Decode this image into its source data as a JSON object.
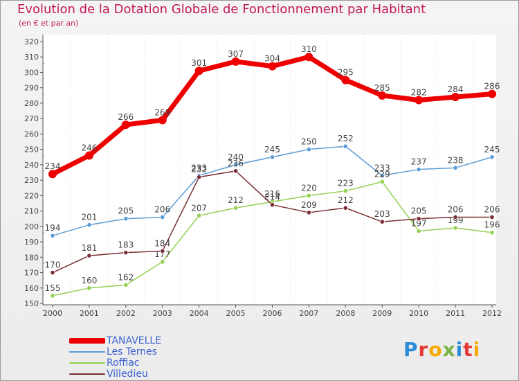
{
  "title": "Evolution de la Dotation Globale de Fonctionnement par Habitant",
  "subtitle": "(en € et par an)",
  "logo": {
    "text": "Proxiti",
    "letters": [
      {
        "char": "P",
        "color": "#2e8bd6"
      },
      {
        "char": "r",
        "color": "#e53935"
      },
      {
        "char": "o",
        "color": "#f6a800"
      },
      {
        "char": "x",
        "color": "#7cb342"
      },
      {
        "char": "i",
        "color": "#2e8bd6"
      },
      {
        "char": "t",
        "color": "#e53935"
      },
      {
        "char": "i",
        "color": "#f6a800"
      }
    ]
  },
  "chart_data": {
    "type": "line",
    "title": "Evolution de la Dotation Globale de Fonctionnement par Habitant",
    "subtitle": "(en € et par an)",
    "xlabel": "",
    "ylabel": "",
    "ylim": [
      150,
      320
    ],
    "y_ticks": [
      150,
      160,
      170,
      180,
      190,
      200,
      210,
      220,
      230,
      240,
      250,
      260,
      270,
      280,
      290,
      300,
      310,
      320
    ],
    "grid": false,
    "legend_position": "bottom-left",
    "categories": [
      "2000",
      "2001",
      "2002",
      "2003",
      "2004",
      "2005",
      "2006",
      "2007",
      "2008",
      "2009",
      "2010",
      "2011",
      "2012"
    ],
    "series": [
      {
        "name": "Les Ternes",
        "color": "#5b9bd5",
        "width": 1.5,
        "values": [
          194,
          201,
          205,
          206,
          233,
          240,
          245,
          250,
          252,
          233,
          237,
          238,
          245
        ],
        "labels": [
          "194",
          "201",
          "205",
          "206",
          "233",
          "240",
          "245",
          "250",
          "252",
          "233",
          "237",
          "238",
          "245"
        ]
      },
      {
        "name": "Roffiac",
        "color": "#92d050",
        "width": 1.5,
        "values": [
          155,
          160,
          162,
          177,
          207,
          212,
          216,
          220,
          223,
          229,
          197,
          199,
          196
        ],
        "labels": [
          "155",
          "160",
          "162",
          "177",
          "207",
          "212",
          "216",
          "220",
          "223",
          "229",
          "197",
          "199",
          "196"
        ]
      },
      {
        "name": "Villedieu",
        "color": "#7b2d34",
        "width": 1.5,
        "values": [
          170,
          181,
          183,
          184,
          232,
          236,
          214,
          209,
          212,
          203,
          205,
          206,
          206
        ],
        "labels": [
          "170",
          "181",
          "183",
          "184",
          "232",
          "236",
          "214",
          "209",
          "212",
          "203",
          "205",
          "206",
          "206"
        ]
      },
      {
        "name": "TANAVELLE",
        "color": "#ee0000",
        "width": 7,
        "values": [
          234,
          246,
          266,
          269,
          301,
          307,
          304,
          310,
          295,
          285,
          282,
          284,
          286
        ],
        "labels": [
          "234",
          "246",
          "266",
          "269",
          "301",
          "307",
          "304",
          "310",
          "295",
          "285",
          "282",
          "284",
          "286"
        ]
      }
    ],
    "legend_order": [
      "TANAVELLE",
      "Les Ternes",
      "Roffiac",
      "Villedieu"
    ]
  }
}
